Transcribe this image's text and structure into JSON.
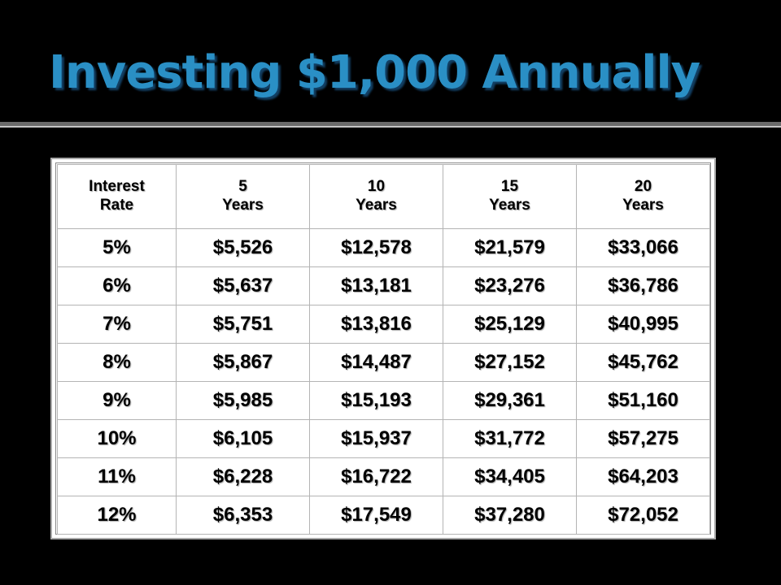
{
  "slide": {
    "title": "Investing $1,000 Annually"
  },
  "table": {
    "headers": [
      {
        "line1": "Interest",
        "line2": "Rate"
      },
      {
        "line1": "5",
        "line2": "Years"
      },
      {
        "line1": "10",
        "line2": "Years"
      },
      {
        "line1": "15",
        "line2": "Years"
      },
      {
        "line1": "20",
        "line2": "Years"
      }
    ],
    "rows": [
      [
        "5%",
        "$5,526",
        "$12,578",
        "$21,579",
        "$33,066"
      ],
      [
        "6%",
        "$5,637",
        "$13,181",
        "$23,276",
        "$36,786"
      ],
      [
        "7%",
        "$5,751",
        "$13,816",
        "$25,129",
        "$40,995"
      ],
      [
        "8%",
        "$5,867",
        "$14,487",
        "$27,152",
        "$45,762"
      ],
      [
        "9%",
        "$5,985",
        "$15,193",
        "$29,361",
        "$51,160"
      ],
      [
        "10%",
        "$6,105",
        "$15,937",
        "$31,772",
        "$57,275"
      ],
      [
        "11%",
        "$6,228",
        "$16,722",
        "$34,405",
        "$64,203"
      ],
      [
        "12%",
        "$6,353",
        "$17,549",
        "$37,280",
        "$72,052"
      ]
    ]
  },
  "colors": {
    "title": "#2a8fc5",
    "background": "#000000",
    "table_background": "#ffffff",
    "table_grid": "#b4b4b4"
  }
}
